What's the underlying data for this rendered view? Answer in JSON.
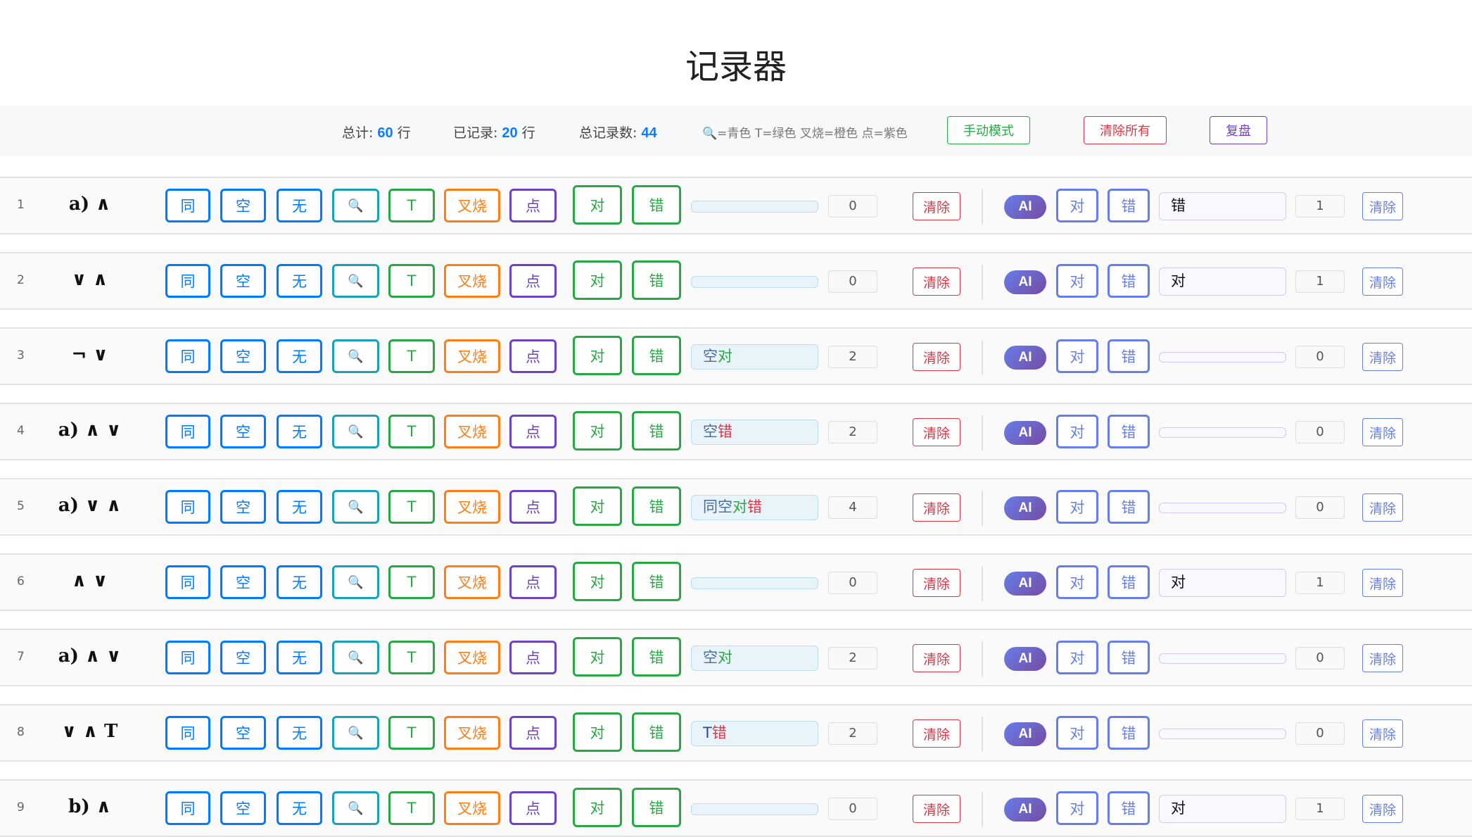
{
  "title": "记录器",
  "toolbar": {
    "total_label": "总计:",
    "total_value": "60",
    "total_unit": "行",
    "recorded_label": "已记录:",
    "recorded_value": "20",
    "recorded_unit": "行",
    "count_label": "总记录数:",
    "count_value": "44",
    "legend_icon": "magnifier-icon",
    "legend_text": "=青色 T=绿色 叉烧=橙色 点=紫色",
    "manual_mode": "手动模式",
    "clear_all": "清除所有",
    "review": "复盘"
  },
  "buttons": {
    "same": "同",
    "empty": "空",
    "none": "无",
    "search_icon": "magnifier-icon",
    "t": "T",
    "chashao": "叉烧",
    "dot": "点",
    "right": "对",
    "wrong": "错",
    "clear": "清除",
    "ai": "AI"
  },
  "colors": {
    "blue": "#007bff",
    "teal": "#17a2b8",
    "green": "#28a745",
    "orange": "#fd7e14",
    "purple": "#6f42c1",
    "red": "#dc3545",
    "ai": "#667eea",
    "record_text": "#4a6a9a"
  },
  "rows": [
    {
      "num": "1",
      "label": "a) ∧",
      "record": "",
      "count": "0",
      "ai_value": "错",
      "ai_count": "1"
    },
    {
      "num": "2",
      "label": "∨ ∧",
      "record": "",
      "count": "0",
      "ai_value": "对",
      "ai_count": "1"
    },
    {
      "num": "3",
      "label": "¬ ∨",
      "record": "空对",
      "count": "2",
      "ai_value": "",
      "ai_count": "0"
    },
    {
      "num": "4",
      "label": "a) ∧ ∨",
      "record": "空错",
      "count": "2",
      "ai_value": "",
      "ai_count": "0"
    },
    {
      "num": "5",
      "label": "a) ∨ ∧",
      "record": "同空对错",
      "count": "4",
      "ai_value": "",
      "ai_count": "0"
    },
    {
      "num": "6",
      "label": "∧ ∨",
      "record": "",
      "count": "0",
      "ai_value": "对",
      "ai_count": "1"
    },
    {
      "num": "7",
      "label": "a) ∧ ∨",
      "record": "空对",
      "count": "2",
      "ai_value": "",
      "ai_count": "0"
    },
    {
      "num": "8",
      "label": "∨ ∧ T",
      "record": "T错",
      "count": "2",
      "ai_value": "",
      "ai_count": "0"
    },
    {
      "num": "9",
      "label": "b) ∧",
      "record": "",
      "count": "0",
      "ai_value": "对",
      "ai_count": "1"
    }
  ]
}
